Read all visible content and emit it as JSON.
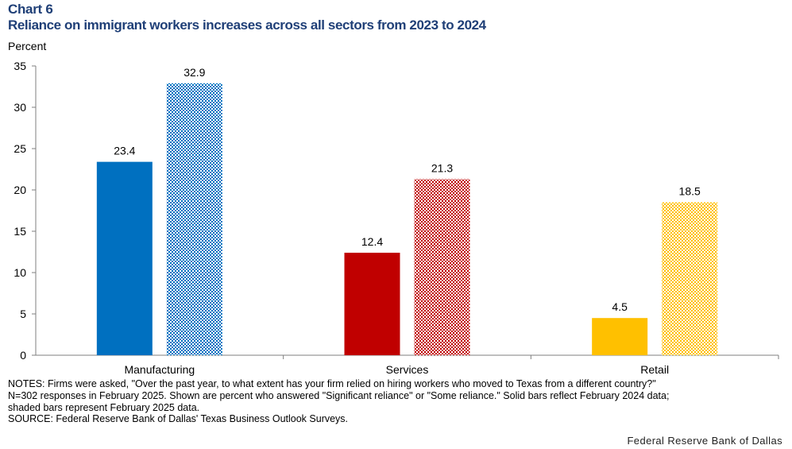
{
  "header": {
    "chart_label": "Chart 6",
    "title": "Reliance on immigrant workers increases across all sectors from 2023 to 2024"
  },
  "chart_data": {
    "type": "bar",
    "title": "Reliance on immigrant workers increases across all sectors from 2023 to 2024",
    "ylabel": "Percent",
    "xlabel": "",
    "ylim": [
      0,
      35
    ],
    "yticks": [
      0,
      5,
      10,
      15,
      20,
      25,
      30,
      35
    ],
    "categories": [
      "Manufacturing",
      "Services",
      "Retail"
    ],
    "series": [
      {
        "values": [
          23.4,
          12.4,
          4.5
        ],
        "fill": "solid"
      },
      {
        "values": [
          32.9,
          21.3,
          18.5
        ],
        "fill": "shaded"
      }
    ],
    "colors": [
      "#0070c0",
      "#c00000",
      "#ffc000"
    ],
    "grid": false,
    "legend": "none"
  },
  "notes": [
    "NOTES: Firms were asked, \"Over the past year, to what extent has your firm relied on hiring workers who moved to Texas from a different country?\"",
    "N=302 responses in February 2025. Shown are percent who answered \"Significant reliance\" or \"Some reliance.\" Solid bars reflect February 2024 data;",
    "shaded bars represent February 2025 data.",
    "SOURCE: Federal Reserve Bank of Dallas' Texas Business Outlook Surveys."
  ],
  "credit": "Federal Reserve Bank of Dallas"
}
